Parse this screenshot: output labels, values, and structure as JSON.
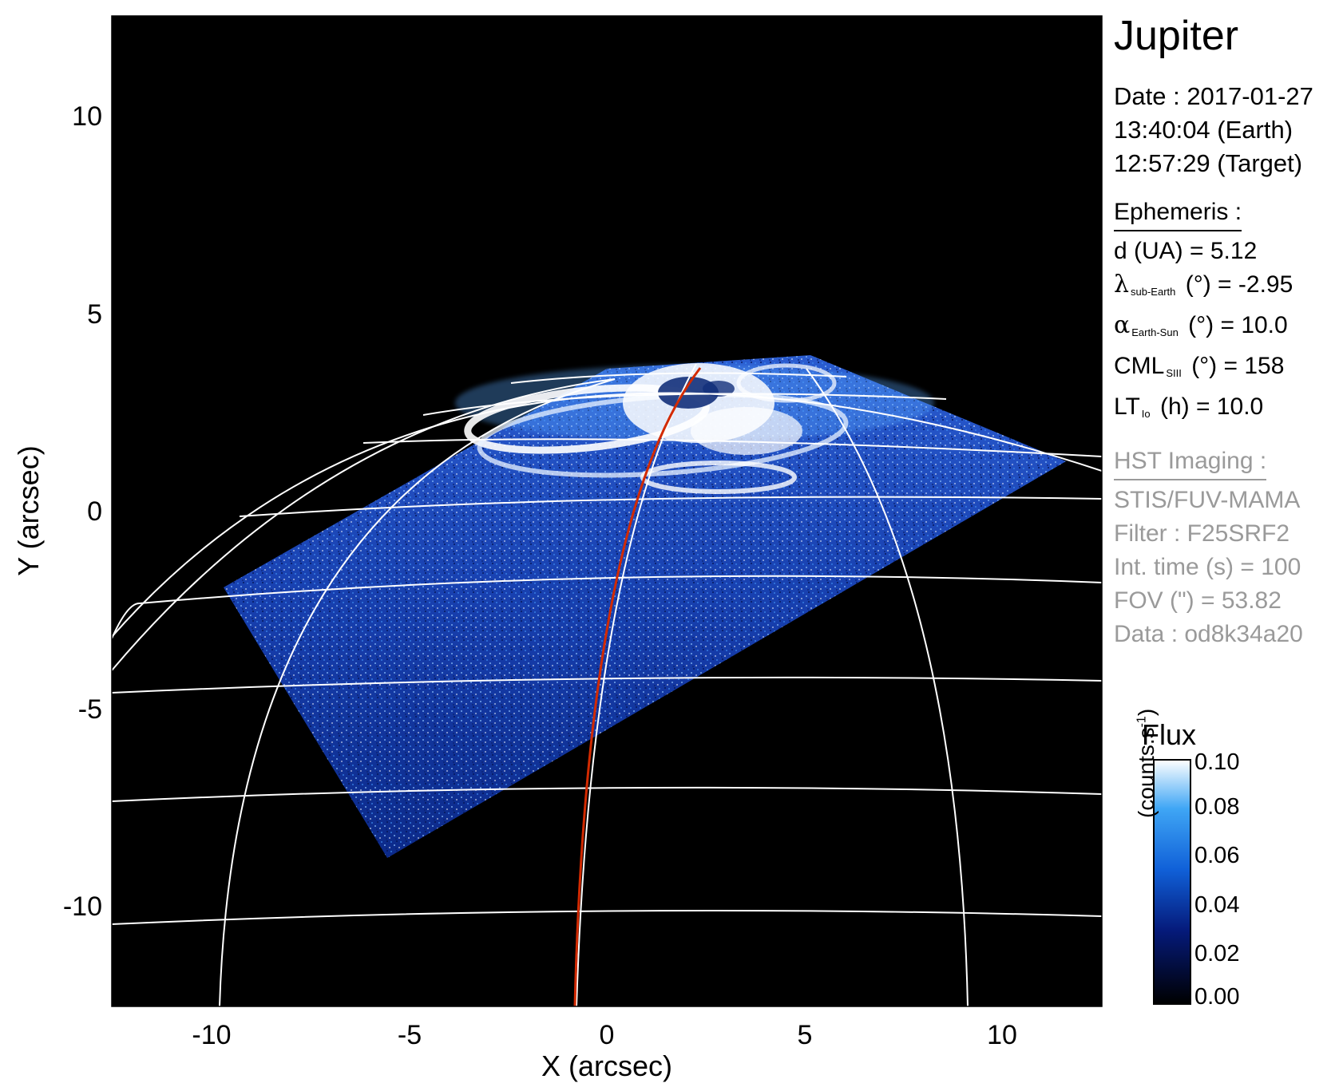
{
  "panel": {
    "planet": "Jupiter",
    "date_label": "Date : 2017-01-27",
    "time_earth": "13:40:04 (Earth)",
    "time_target": "12:57:29 (Target)",
    "ephemeris_heading": "Ephemeris :",
    "ephemeris": [
      {
        "name": "d (UA)",
        "sub": "",
        "rest": " = 5.12"
      },
      {
        "name": "λ",
        "sub": "sub-Earth",
        "rest": " (°) = -2.95"
      },
      {
        "name": "α",
        "sub": "Earth-Sun",
        "rest": " (°) = 10.0"
      },
      {
        "name": "CML",
        "sub": "SIII",
        "rest": " (°) = 158"
      },
      {
        "name": "LT",
        "sub": "Io",
        "rest": " (h) = 10.0"
      }
    ],
    "hst_heading": "HST Imaging :",
    "hst": [
      "STIS/FUV-MAMA",
      "Filter : F25SRF2",
      "Int. time (s) = 100",
      "FOV (\") = 53.82",
      "Data : od8k34a20"
    ]
  },
  "image": {
    "x_label": "X (arcsec)",
    "y_label": "Y (arcsec)",
    "x_ticks": [
      -10,
      -5,
      0,
      5,
      10
    ],
    "y_ticks": [
      10,
      5,
      0,
      -5,
      -10
    ],
    "x_range": [
      -12.5,
      12.5
    ],
    "y_range": [
      -12.5,
      12.5
    ],
    "background_color": "#000000",
    "grid_color": "#ffffff",
    "meridian_color": "#d22a00",
    "aurora_color": "#ffffff"
  },
  "colorbar": {
    "title": "Flux",
    "unit_prefix": "(counts.s",
    "unit_exp": "-1",
    "unit_suffix": ")",
    "ticks": [
      "0.10",
      "0.08",
      "0.06",
      "0.04",
      "0.02",
      "0.00"
    ],
    "vmin": 0.0,
    "vmax": 0.1,
    "stops": [
      "#000000",
      "#051a7a",
      "#1060d8",
      "#3fa6f5",
      "#ffffff"
    ]
  }
}
